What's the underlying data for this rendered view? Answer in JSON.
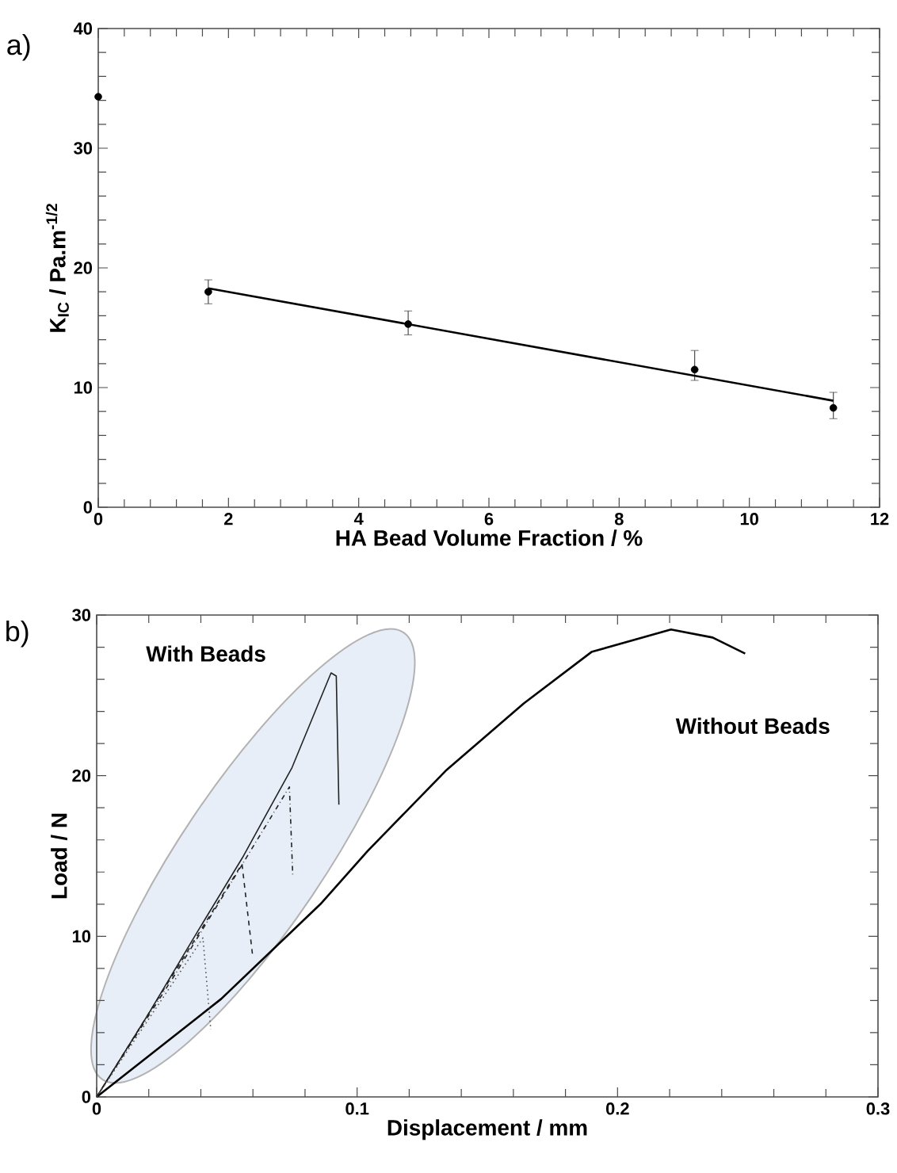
{
  "chart_data": [
    {
      "type": "scatter",
      "annotations": [
        "a)"
      ],
      "xlabel": "HA Bead Volume Fraction / %",
      "ylabel": "K$_{IC}$ / Pa.m$^{-1/2}$",
      "xlim": [
        0,
        12
      ],
      "ylim": [
        0,
        40
      ],
      "xticks": [
        0,
        2,
        4,
        6,
        8,
        10,
        12
      ],
      "yticks": [
        0,
        10,
        20,
        30,
        40
      ],
      "series": [
        {
          "type": "scatter",
          "marker": "circle",
          "color": "#000000",
          "x": [
            0,
            1.69,
            4.76,
            9.16,
            11.29
          ],
          "values": [
            34.3,
            18.0,
            15.3,
            11.5,
            8.3
          ],
          "errors": [
            null,
            [
              17.0,
              19.0
            ],
            [
              14.4,
              16.4
            ],
            [
              10.6,
              13.1
            ],
            [
              7.4,
              9.6
            ]
          ]
        },
        {
          "type": "line",
          "marker": "none",
          "color": "#000000",
          "x": [
            1.69,
            11.29
          ],
          "values": [
            18.3,
            8.9
          ]
        }
      ]
    },
    {
      "type": "line",
      "annotations": [
        "b)",
        "With Beads",
        "Without Beads"
      ],
      "xlabel": "Displacement / mm",
      "ylabel": "Load / N",
      "xlim": [
        0,
        0.3
      ],
      "ylim": [
        0,
        30
      ],
      "xticks": [
        0,
        0.1,
        0.2,
        0.3
      ],
      "yticks": [
        0,
        10,
        20,
        30
      ],
      "series": [
        {
          "type": "line",
          "line_style": "solid",
          "color": "#000000",
          "x": [
            0,
            0.0478,
            0.0859,
            0.104,
            0.134,
            0.164,
            0.19,
            0.2205,
            0.2365,
            0.249
          ],
          "values": [
            0,
            6.1,
            12.0,
            15.3,
            20.3,
            24.5,
            27.7,
            29.1,
            28.6,
            27.6
          ]
        },
        {
          "type": "line",
          "line_style": "solid",
          "color": "#222222",
          "x": [
            0,
            0.02,
            0.038,
            0.056,
            0.075,
            0.09,
            0.092,
            0.093
          ],
          "values": [
            0,
            5.2,
            10.1,
            14.9,
            20.5,
            26.4,
            26.2,
            18.2
          ]
        },
        {
          "type": "line",
          "line_style": "dashdot",
          "color": "#222222",
          "x": [
            0,
            0.03,
            0.056,
            0.074,
            0.0753
          ],
          "values": [
            0,
            7.6,
            14.5,
            19.3,
            13.7
          ]
        },
        {
          "type": "line",
          "line_style": "dashed",
          "color": "#222222",
          "x": [
            0,
            0.0558,
            0.0598
          ],
          "values": [
            0,
            14.5,
            8.9
          ]
        },
        {
          "type": "line",
          "line_style": "dotted",
          "color": "#555555",
          "x": [
            0,
            0.0408,
            0.0438
          ],
          "values": [
            0,
            9.9,
            4.2
          ]
        }
      ]
    }
  ]
}
